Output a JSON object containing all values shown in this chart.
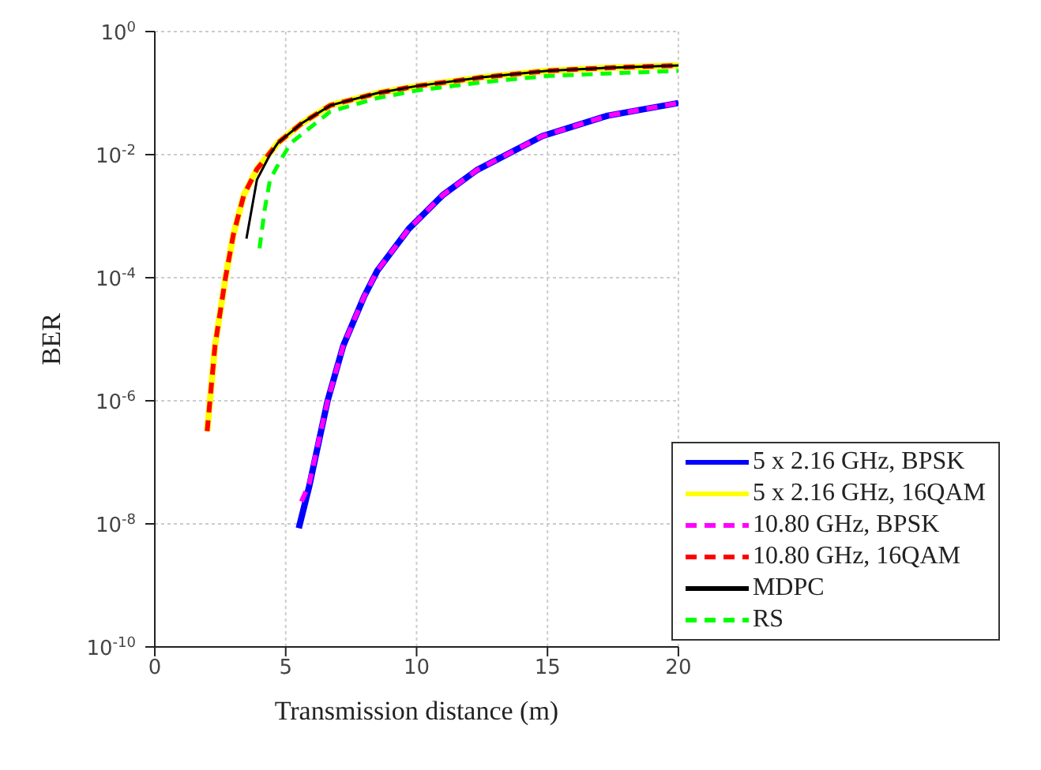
{
  "chart_data": {
    "type": "line",
    "xlabel": "Transmission distance (m)",
    "ylabel": "BER",
    "log": "y",
    "grid": true,
    "legend": "bottom right",
    "xlim": [
      0,
      20
    ],
    "xticks": [
      0,
      5,
      10,
      15,
      20
    ],
    "ylim": [
      1e-10,
      1
    ],
    "yticks": [
      {
        "value": 1e-10,
        "label": "10$^{-10}$"
      },
      {
        "value": 1e-08,
        "label": "10$^{-8}$"
      },
      {
        "value": 1e-06,
        "label": "10$^{-6}$"
      },
      {
        "value": 0.0001,
        "label": "10$^{-4}$"
      },
      {
        "value": 0.01,
        "label": "10$^{-2}$"
      },
      {
        "value": 1,
        "label": "10$^{0}$"
      }
    ],
    "series": [
      {
        "name": "5 x 2.16 GHz, BPSK",
        "color": "#0000ff",
        "line_style": "solid",
        "x": [
          5.5,
          5.9,
          6.6,
          7.2,
          8.0,
          8.5,
          9.7,
          11,
          12.3,
          14.8,
          17.3,
          20
        ],
        "values": [
          8.5e-09,
          4.1e-08,
          1e-06,
          7.9e-06,
          5e-05,
          0.00013,
          0.00062,
          0.0022,
          0.0056,
          0.02,
          0.043,
          0.069
        ]
      },
      {
        "name": "5 x 2.16 GHz, 16QAM",
        "color": "#ffff00",
        "line_style": "solid",
        "x": [
          2.0,
          2.3,
          2.7,
          3.0,
          3.4,
          3.9,
          4.7,
          5.6,
          6.7,
          8.5,
          10,
          12.5,
          15,
          17.5,
          20
        ],
        "values": [
          3.2e-07,
          7.9e-06,
          0.0001,
          0.0005,
          0.0022,
          0.0058,
          0.0155,
          0.032,
          0.063,
          0.1,
          0.13,
          0.18,
          0.23,
          0.26,
          0.28
        ]
      },
      {
        "name": "10.80 GHz, BPSK",
        "color": "#ff00ff",
        "line_style": "dashed",
        "x": [
          5.6,
          5.9,
          6.6,
          7.2,
          8.0,
          8.5,
          9.7,
          11,
          12.3,
          14.8,
          17.3,
          20
        ],
        "values": [
          2.3e-08,
          4.5e-08,
          1e-06,
          7.9e-06,
          5e-05,
          0.00013,
          0.00062,
          0.0022,
          0.0056,
          0.02,
          0.043,
          0.069
        ]
      },
      {
        "name": "10.80 GHz, 16QAM",
        "color": "#ff0000",
        "line_style": "dashed",
        "x": [
          2.0,
          2.3,
          2.7,
          3.0,
          3.4,
          3.9,
          4.7,
          5.6,
          6.7,
          8.5,
          10,
          12.5,
          15,
          17.5,
          20
        ],
        "values": [
          3.2e-07,
          7.9e-06,
          0.0001,
          0.0005,
          0.0022,
          0.0058,
          0.0155,
          0.032,
          0.063,
          0.1,
          0.13,
          0.18,
          0.23,
          0.26,
          0.28
        ]
      },
      {
        "name": "MDPC",
        "color": "#000000",
        "line_style": "solid",
        "x": [
          3.5,
          3.9,
          4.4,
          4.7,
          5.6,
          6.7,
          8.5,
          10,
          12.5,
          15,
          17.5,
          20
        ],
        "values": [
          0.00043,
          0.0039,
          0.01,
          0.0155,
          0.032,
          0.063,
          0.1,
          0.13,
          0.18,
          0.23,
          0.26,
          0.28
        ]
      },
      {
        "name": "RS",
        "color": "#00ff00",
        "line_style": "dashed",
        "x": [
          4.0,
          4.2,
          4.4,
          4.8,
          5.2,
          6.7,
          8.5,
          10,
          12.5,
          15,
          17.5,
          20
        ],
        "values": [
          0.0003,
          0.0013,
          0.0039,
          0.0081,
          0.0155,
          0.05,
          0.083,
          0.11,
          0.15,
          0.19,
          0.21,
          0.23
        ]
      }
    ]
  }
}
